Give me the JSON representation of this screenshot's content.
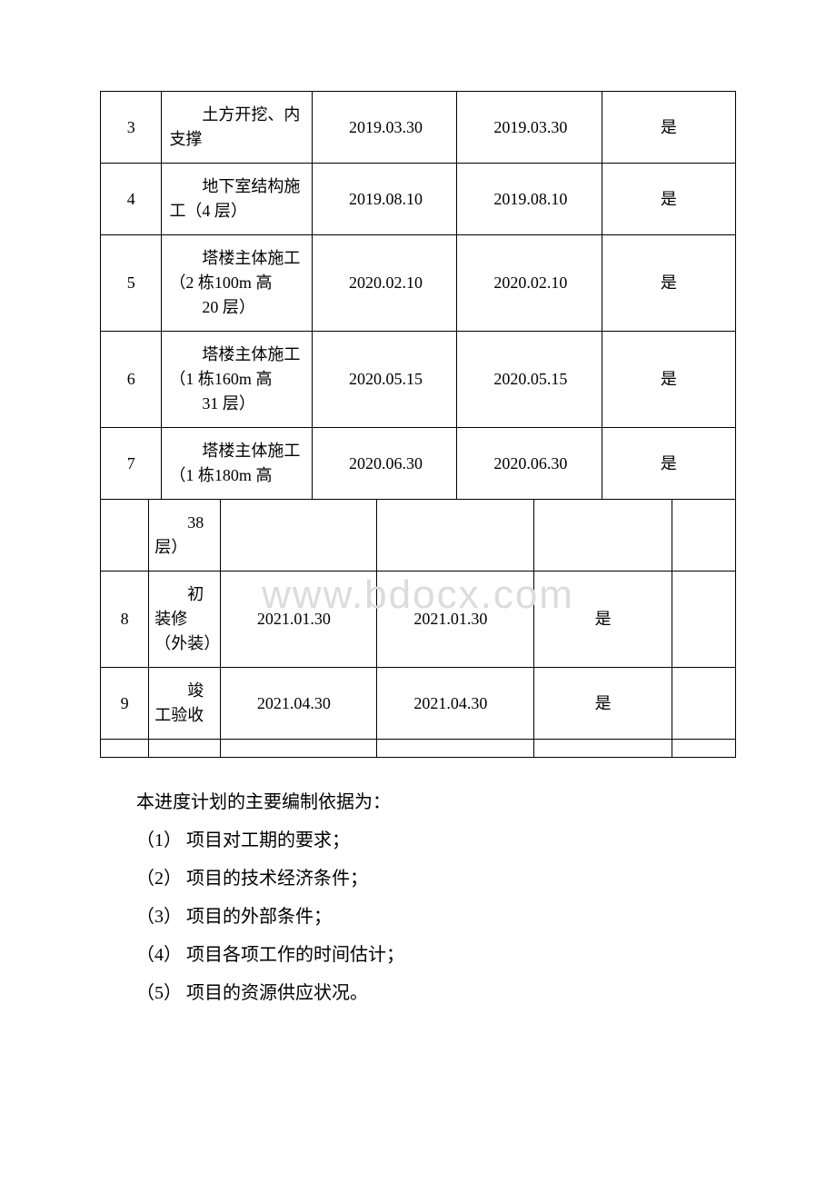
{
  "watermark": "www.bdocx.com",
  "table_a": {
    "rows": [
      {
        "idx": "3",
        "desc": "　　土方开挖、内支撑",
        "date1": "　　2019.03.30",
        "date2": "　　2019.03.30",
        "flag": "是"
      },
      {
        "idx": "4",
        "desc": "　　地下室结构施工（4 层）",
        "date1": "　　2019.08.10",
        "date2": "　　2019.08.10",
        "flag": "是"
      },
      {
        "idx": "5",
        "desc": "　　塔楼主体施工（2 栋100m 高\n　　20 层）",
        "date1": "　　2020.02.10",
        "date2": "　　2020.02.10",
        "flag": "是"
      },
      {
        "idx": "6",
        "desc": "　　塔楼主体施工（1 栋160m 高\n　　31 层）",
        "date1": "　　2020.05.15",
        "date2": "　　2020.05.15",
        "flag": "是"
      },
      {
        "idx": "7",
        "desc": "　　塔楼主体施工（1 栋180m 高",
        "date1": "　　2020.06.30",
        "date2": "　　2020.06.30",
        "flag": "是"
      }
    ]
  },
  "table_b": {
    "row_cont": {
      "desc": "　　38 层）"
    },
    "rows": [
      {
        "idx": "8",
        "desc": "　　初装修（外装）",
        "date1": "　　2021.01.30",
        "date2": "　　2021.01.30",
        "flag": "是"
      },
      {
        "idx": "9",
        "desc": "　　竣工验收",
        "date1": "　　2021.04.30",
        "date2": "　　2021.04.30",
        "flag": "是"
      }
    ]
  },
  "paragraphs": {
    "intro": "本进度计划的主要编制依据为：",
    "items": [
      "（1） 项目对工期的要求；",
      "（2） 项目的技术经济条件；",
      "（3） 项目的外部条件；",
      "（4） 项目各项工作的时间估计；",
      "（5） 项目的资源供应状况。"
    ]
  }
}
